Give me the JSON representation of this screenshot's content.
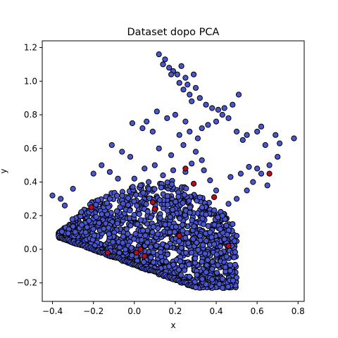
{
  "chart_data": {
    "type": "scatter",
    "title": "Dataset dopo PCA",
    "xlabel": "x",
    "ylabel": "y",
    "xlim": [
      -0.45,
      0.83
    ],
    "ylim": [
      -0.31,
      1.24
    ],
    "xticks": [
      -0.4,
      -0.2,
      0.0,
      0.2,
      0.4,
      0.6,
      0.8
    ],
    "xtick_labels": [
      "−0.4",
      "−0.2",
      "0.0",
      "0.2",
      "0.4",
      "0.6",
      "0.8"
    ],
    "yticks": [
      -0.2,
      0.0,
      0.2,
      0.4,
      0.6,
      0.8,
      1.0,
      1.2
    ],
    "ytick_labels": [
      "−0.2",
      "0.0",
      "0.2",
      "0.4",
      "0.6",
      "0.8",
      "1.0",
      "1.2"
    ],
    "grid": false,
    "colors": {
      "blue": "#4a56cf",
      "red": "#b30d1e",
      "edge": "#000000"
    },
    "series": [
      {
        "color": "#4a56cf",
        "points": [
          [
            0.12,
            1.16
          ],
          [
            0.15,
            1.13
          ],
          [
            0.14,
            1.1
          ],
          [
            0.17,
            1.08
          ],
          [
            0.19,
            1.06
          ],
          [
            0.18,
            1.04
          ],
          [
            0.23,
            1.09
          ],
          [
            0.21,
            1.04
          ],
          [
            0.25,
            1.02
          ],
          [
            0.29,
            1.04
          ],
          [
            0.22,
            0.99
          ],
          [
            0.26,
            0.98
          ],
          [
            0.24,
            0.95
          ],
          [
            0.3,
            0.96
          ],
          [
            0.27,
            0.92
          ],
          [
            0.32,
            0.9
          ],
          [
            0.28,
            0.88
          ],
          [
            0.35,
            0.86
          ],
          [
            0.38,
            0.84
          ],
          [
            0.41,
            0.83
          ],
          [
            0.44,
            0.84
          ],
          [
            0.48,
            0.86
          ],
          [
            0.51,
            0.92
          ],
          [
            0.43,
            0.8
          ],
          [
            0.46,
            0.78
          ],
          [
            0.4,
            0.76
          ],
          [
            0.36,
            0.74
          ],
          [
            0.33,
            0.72
          ],
          [
            0.5,
            0.7
          ],
          [
            0.55,
            0.68
          ],
          [
            0.53,
            0.65
          ],
          [
            0.62,
            0.73
          ],
          [
            0.6,
            0.7
          ],
          [
            0.64,
            0.62
          ],
          [
            0.69,
            0.68
          ],
          [
            0.71,
            0.63
          ],
          [
            0.78,
            0.66
          ],
          [
            0.7,
            0.55
          ],
          [
            0.66,
            0.5
          ],
          [
            0.6,
            0.48
          ],
          [
            0.11,
            0.82
          ],
          [
            0.16,
            0.78
          ],
          [
            0.2,
            0.8
          ],
          [
            0.25,
            0.76
          ],
          [
            0.27,
            0.7
          ],
          [
            0.22,
            0.68
          ],
          [
            0.31,
            0.66
          ],
          [
            0.24,
            0.62
          ],
          [
            -0.01,
            0.75
          ],
          [
            0.04,
            0.72
          ],
          [
            0.09,
            0.7
          ],
          [
            0.06,
            0.76
          ],
          [
            -0.11,
            0.62
          ],
          [
            -0.06,
            0.58
          ],
          [
            -0.02,
            0.55
          ],
          [
            0.12,
            0.6
          ],
          [
            0.18,
            0.56
          ],
          [
            -0.2,
            0.45
          ],
          [
            -0.16,
            0.5
          ],
          [
            -0.12,
            0.46
          ],
          [
            -0.08,
            0.42
          ],
          [
            -0.3,
            0.36
          ],
          [
            -0.36,
            0.3
          ],
          [
            -0.4,
            0.32
          ],
          [
            -0.34,
            0.26
          ],
          [
            0.56,
            0.49
          ],
          [
            0.52,
            0.45
          ],
          [
            0.47,
            0.43
          ],
          [
            0.58,
            0.4
          ],
          [
            0.62,
            0.45
          ],
          [
            0.65,
            0.38
          ],
          [
            0.55,
            0.35
          ],
          [
            0.5,
            0.3
          ],
          [
            0.46,
            0.27
          ],
          [
            0.43,
            0.2
          ],
          [
            0.48,
            0.15
          ],
          [
            0.5,
            0.08
          ],
          [
            0.44,
            0.06
          ],
          [
            0.39,
            0.03
          ],
          [
            0.42,
            0.12
          ],
          [
            0.37,
            0.1
          ],
          [
            0.4,
            0.35
          ],
          [
            0.37,
            0.41
          ],
          [
            0.34,
            0.47
          ],
          [
            0.33,
            0.53
          ],
          [
            0.3,
            0.58
          ],
          [
            0.28,
            0.51
          ],
          [
            0.25,
            0.46
          ],
          [
            0.1,
            0.5
          ],
          [
            0.05,
            0.48
          ],
          [
            0.0,
            0.42
          ],
          [
            0.03,
            0.38
          ],
          [
            0.07,
            0.4
          ],
          [
            0.14,
            0.44
          ],
          [
            0.19,
            0.47
          ]
        ]
      },
      {
        "color": "#b30d1e",
        "points": [
          [
            0.03,
            0.0
          ],
          [
            0.05,
            -0.04
          ],
          [
            0.01,
            -0.02
          ],
          [
            0.1,
            0.24
          ],
          [
            -0.21,
            0.25
          ],
          [
            0.29,
            0.39
          ],
          [
            0.22,
            0.08
          ],
          [
            0.25,
            0.48
          ],
          [
            0.66,
            0.45
          ],
          [
            0.39,
            0.31
          ],
          [
            0.46,
            0.02
          ],
          [
            -0.13,
            -0.02
          ],
          [
            0.09,
            0.28
          ]
        ]
      }
    ],
    "dense_region": {
      "description_free": true,
      "lower_edge": [
        [
          -0.37,
          0.07
        ],
        [
          0.3,
          -0.23
        ]
      ],
      "upper_edge": [
        [
          -0.37,
          0.1
        ],
        [
          -0.2,
          0.3
        ],
        [
          0.0,
          0.38
        ],
        [
          0.2,
          0.42
        ],
        [
          0.35,
          0.3
        ],
        [
          0.45,
          0.2
        ],
        [
          0.5,
          0.05
        ]
      ]
    }
  }
}
